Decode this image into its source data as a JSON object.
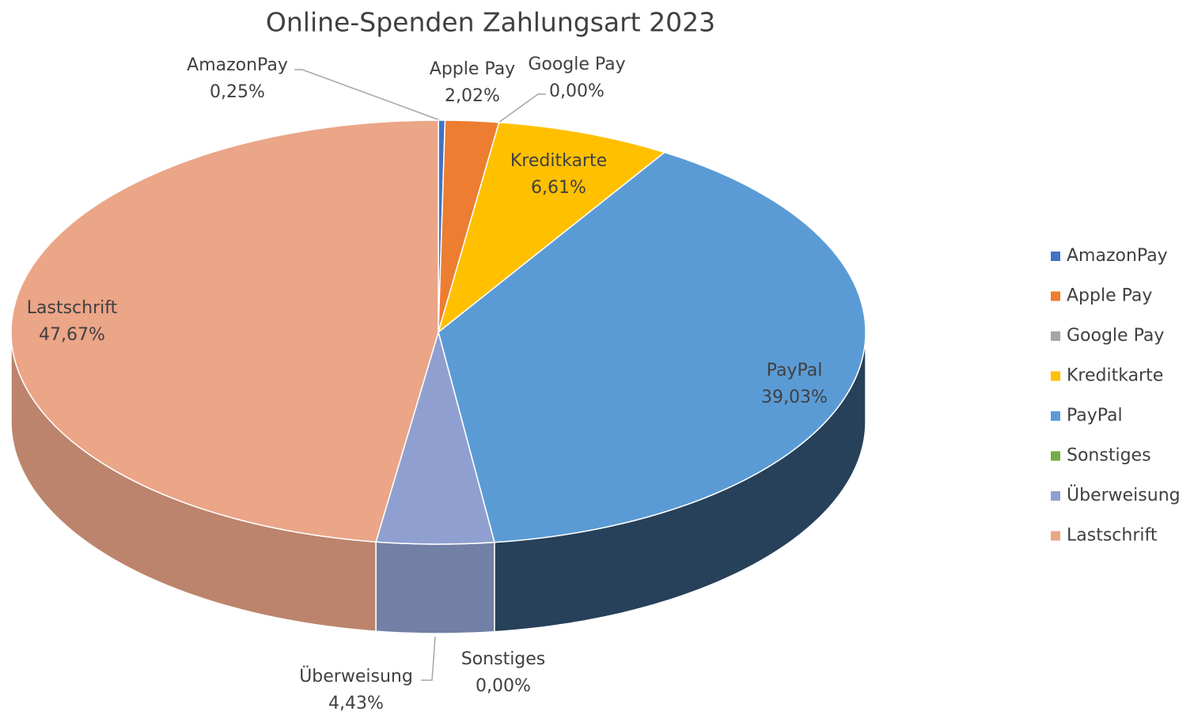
{
  "chart_data": {
    "type": "pie3d",
    "title": "Online-Spenden Zahlungsart 2023",
    "categories": [
      "AmazonPay",
      "Apple Pay",
      "Google Pay",
      "Kreditkarte",
      "PayPal",
      "Sonstiges",
      "Überweisung",
      "Lastschrift"
    ],
    "values": [
      0.25,
      2.02,
      0.0,
      6.61,
      39.03,
      0.0,
      4.43,
      47.67
    ],
    "value_labels": [
      "0,25%",
      "2,02%",
      "0,00%",
      "6,61%",
      "39,03%",
      "0,00%",
      "4,43%",
      "47,67%"
    ],
    "colors": [
      "#4472c4",
      "#ed7d31",
      "#a5a5a5",
      "#ffc000",
      "#5b9bd5",
      "#70ad47",
      "#8fa0d0",
      "#eba587"
    ],
    "legend": "right"
  }
}
